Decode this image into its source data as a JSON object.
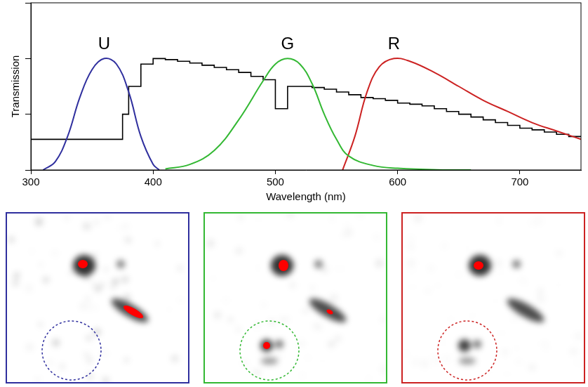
{
  "chart_data": {
    "type": "line",
    "x_label": "Wavelength (nm)",
    "y_label": "Transmission",
    "xlim": [
      300,
      750
    ],
    "xticks": [
      300,
      400,
      500,
      600,
      700
    ],
    "ylim": [
      0,
      3
    ],
    "yticks": [
      0,
      1,
      2,
      3
    ],
    "tick_labels": "x",
    "grid": false,
    "series": [
      {
        "name": "U",
        "color": "#2f2f9e",
        "line_style": "solid",
        "x": [
          310,
          320,
          330,
          340,
          350,
          360,
          370,
          380,
          390,
          400,
          405
        ],
        "values": [
          0,
          0.15,
          0.6,
          1.3,
          1.8,
          2.0,
          1.9,
          1.4,
          0.6,
          0.1,
          0
        ]
      },
      {
        "name": "G",
        "color": "#33b833",
        "line_style": "solid",
        "x": [
          410,
          430,
          450,
          470,
          490,
          500,
          510,
          520,
          530,
          540,
          550,
          560,
          580,
          600,
          640,
          660
        ],
        "values": [
          0.02,
          0.1,
          0.35,
          0.9,
          1.6,
          1.9,
          2.0,
          1.9,
          1.55,
          1.0,
          0.55,
          0.25,
          0.08,
          0.03,
          0,
          0
        ]
      },
      {
        "name": "R",
        "color": "#cc2222",
        "line_style": "solid",
        "x": [
          555,
          565,
          575,
          585,
          597,
          610,
          630,
          650,
          670,
          690,
          710,
          730,
          750
        ],
        "values": [
          0,
          0.6,
          1.4,
          1.85,
          2.0,
          1.95,
          1.75,
          1.5,
          1.25,
          1.05,
          0.85,
          0.7,
          0.55
        ]
      },
      {
        "color": "#000000",
        "line_style": "steps",
        "x": [
          300,
          375,
          380,
          390,
          400,
          410,
          420,
          430,
          440,
          450,
          460,
          470,
          480,
          490,
          500,
          510,
          520,
          530,
          540,
          550,
          560,
          570,
          580,
          590,
          600,
          610,
          620,
          630,
          640,
          650,
          660,
          670,
          680,
          690,
          700,
          710,
          720,
          730,
          740,
          750
        ],
        "values": [
          0,
          0.55,
          1.0,
          1.5,
          1.9,
          2.0,
          1.98,
          1.95,
          1.92,
          1.88,
          1.84,
          1.8,
          1.75,
          1.68,
          1.62,
          1.1,
          1.5,
          1.5,
          1.48,
          1.45,
          1.4,
          1.35,
          1.3,
          1.28,
          1.25,
          1.2,
          1.18,
          1.15,
          1.1,
          1.05,
          1.0,
          0.95,
          0.9,
          0.85,
          0.8,
          0.75,
          0.72,
          0.68,
          0.64,
          0.6
        ]
      }
    ]
  },
  "panels": [
    {
      "color": "#2f2f9e"
    },
    {
      "color": "#33b833"
    },
    {
      "color": "#cc2222"
    }
  ]
}
